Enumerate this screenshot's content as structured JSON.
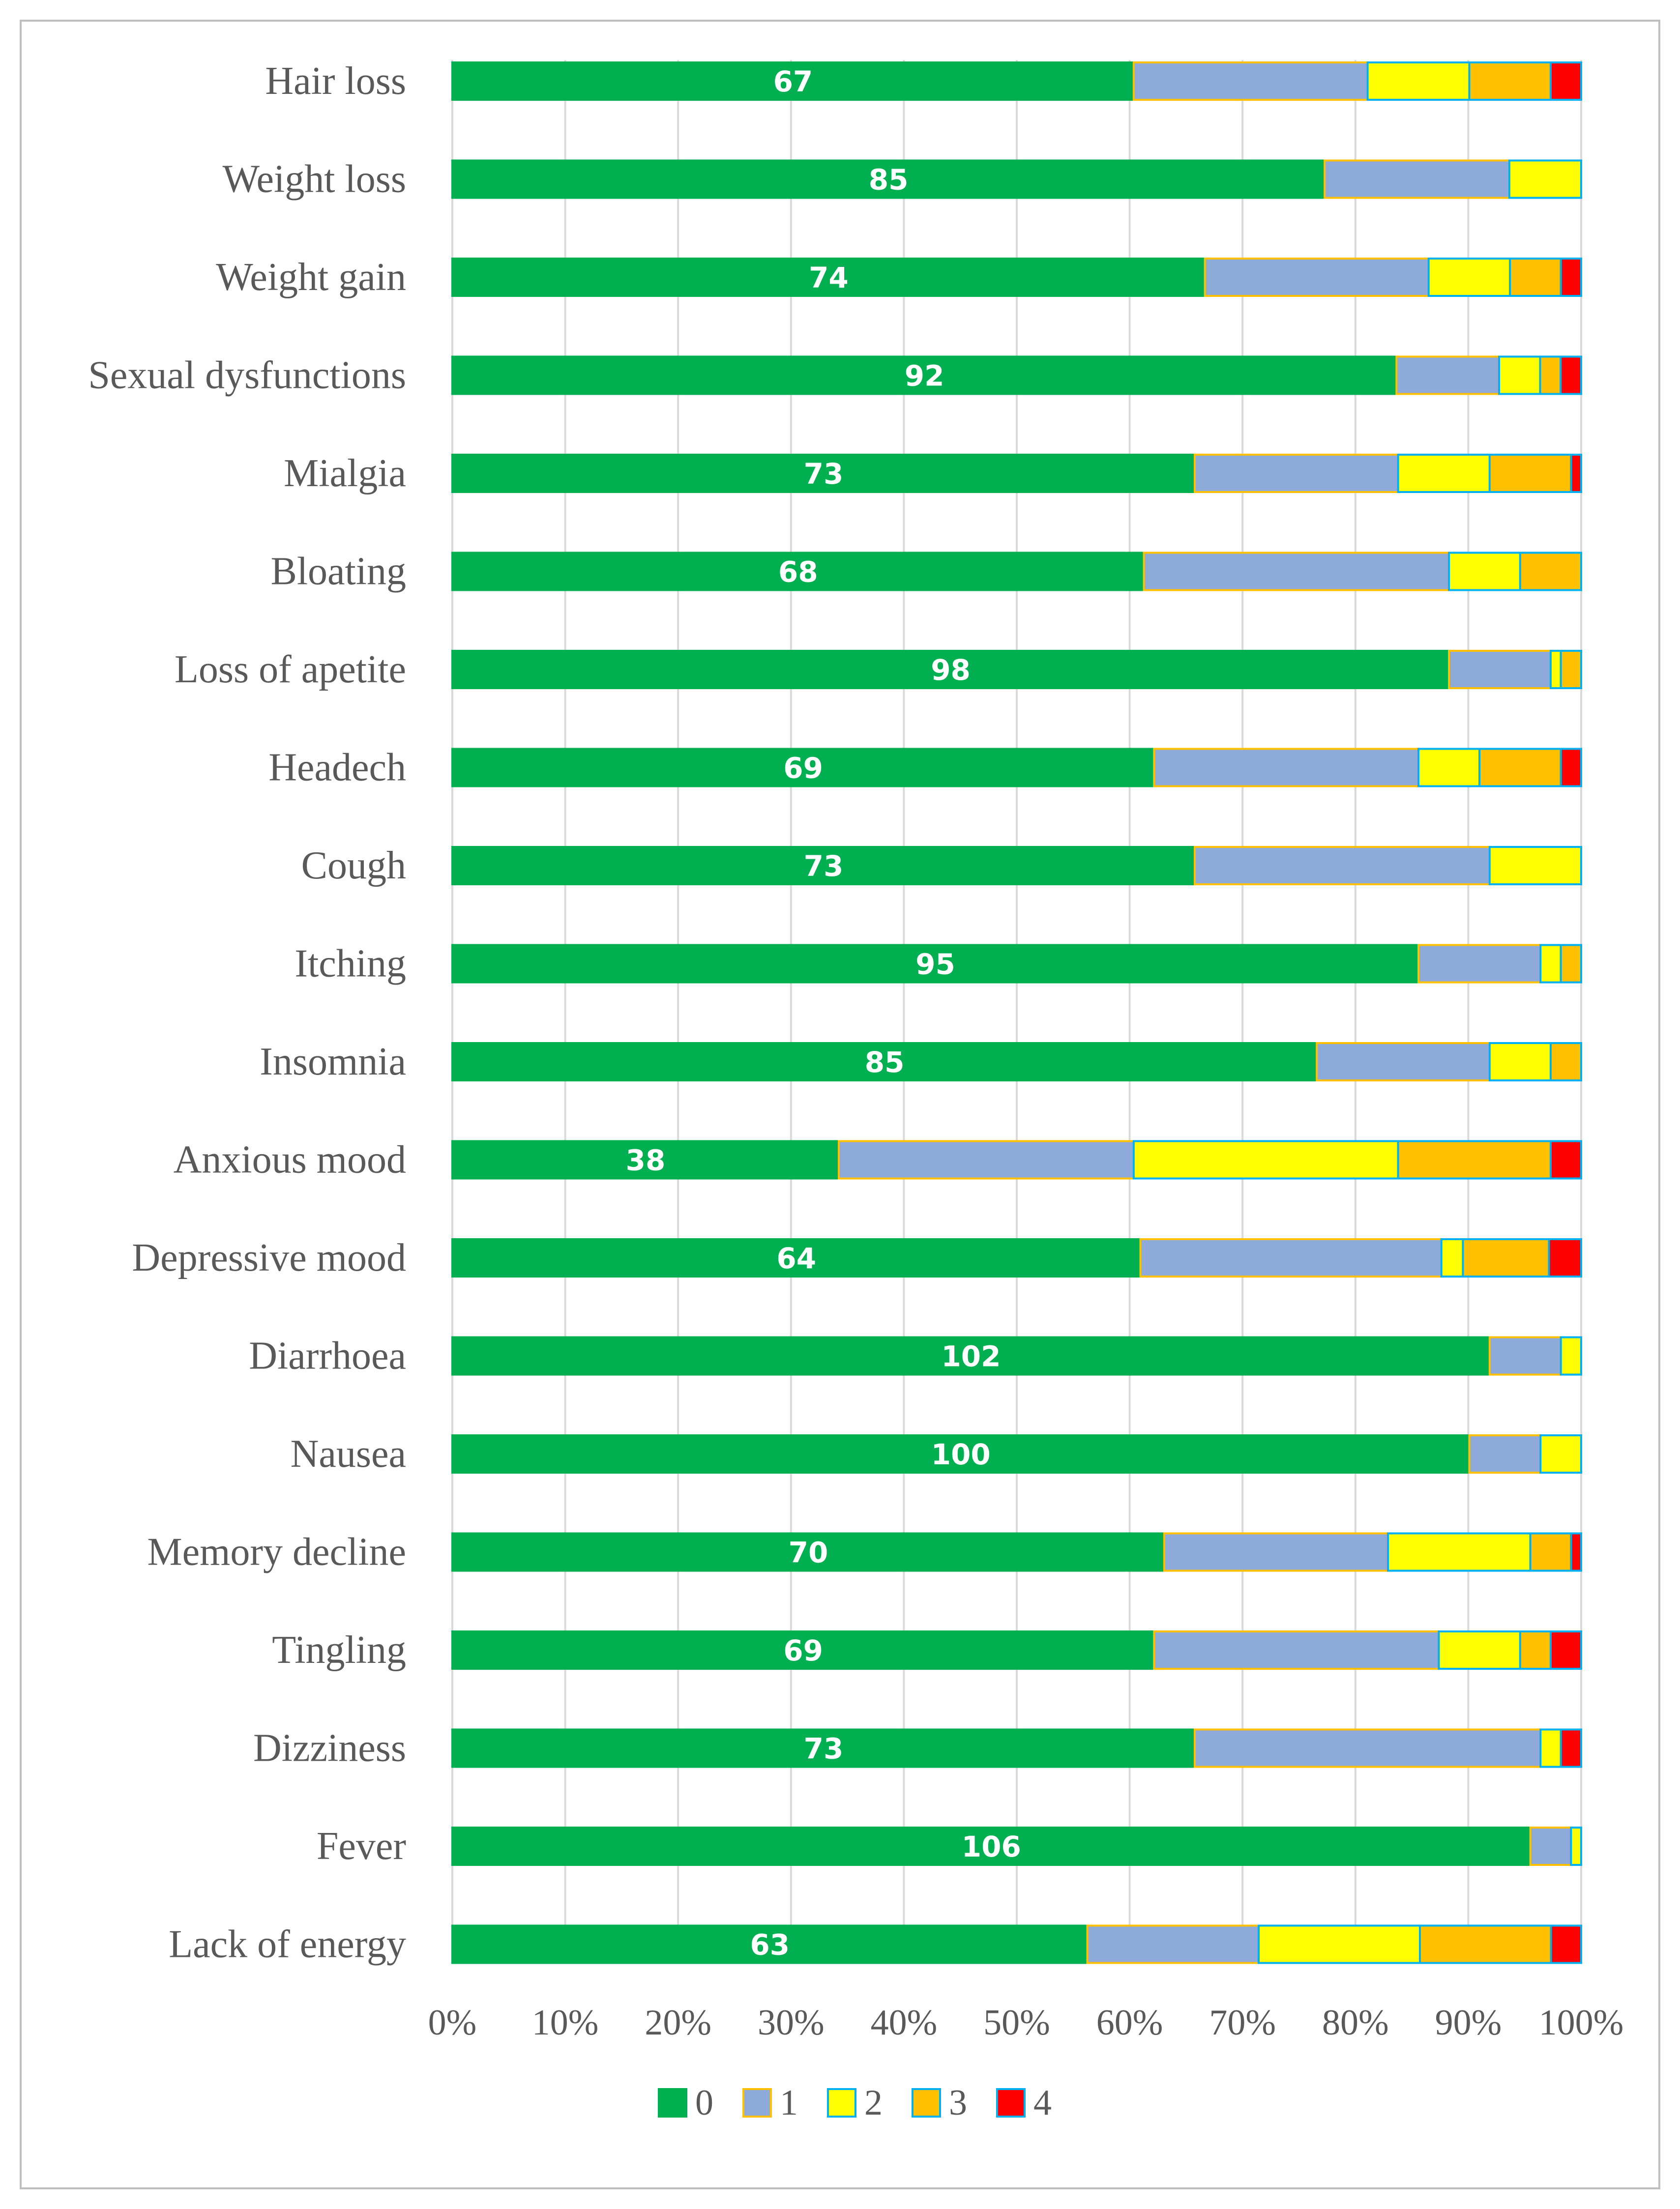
{
  "chart_data": {
    "type": "bar",
    "orientation": "horizontal",
    "stacking": "percent",
    "title": "",
    "xlabel": "",
    "ylabel": "",
    "xlim": [
      0,
      100
    ],
    "x_ticks": [
      "0%",
      "10%",
      "20%",
      "30%",
      "40%",
      "50%",
      "60%",
      "70%",
      "80%",
      "90%",
      "100%"
    ],
    "grid": "vertical",
    "legend_position": "bottom",
    "categories": [
      "Hair loss",
      "Weight loss",
      "Weight gain",
      "Sexual dysfunctions",
      "Mialgia",
      "Bloating",
      "Loss of apetite",
      "Headech",
      "Cough",
      "Itching",
      "Insomnia",
      "Anxious mood",
      "Depressive mood",
      "Diarrhoea",
      "Nausea",
      "Memory decline",
      "Tingling",
      "Dizziness",
      "Fever",
      "Lack of energy"
    ],
    "data_labels": [
      "67",
      "85",
      "74",
      "92",
      "73",
      "68",
      "98",
      "69",
      "73",
      "95",
      "85",
      "38",
      "64",
      "102",
      "100",
      "70",
      "69",
      "73",
      "106",
      "63"
    ],
    "series": [
      {
        "name": "0",
        "color": "#00b050",
        "border": "#00b050",
        "values": [
          67,
          85,
          74,
          92,
          73,
          68,
          98,
          69,
          73,
          95,
          85,
          38,
          64,
          102,
          100,
          70,
          69,
          73,
          106,
          63
        ]
      },
      {
        "name": "1",
        "color": "#8eaadb",
        "border": "#ffc000",
        "values": [
          23,
          18,
          22,
          10,
          20,
          30,
          10,
          26,
          29,
          12,
          17,
          29,
          28,
          7,
          7,
          22,
          28,
          34,
          4,
          17
        ]
      },
      {
        "name": "2",
        "color": "#ffff00",
        "border": "#00b0f0",
        "values": [
          10,
          7,
          8,
          4,
          9,
          7,
          1,
          6,
          9,
          2,
          6,
          26,
          2,
          2,
          4,
          14,
          8,
          2,
          1,
          16
        ]
      },
      {
        "name": "3",
        "color": "#ffc000",
        "border": "#00b0f0",
        "values": [
          8,
          0,
          5,
          2,
          8,
          6,
          2,
          8,
          0,
          2,
          3,
          15,
          8,
          0,
          0,
          4,
          3,
          0,
          0,
          13
        ]
      },
      {
        "name": "4",
        "color": "#ff0000",
        "border": "#00b0f0",
        "values": [
          3,
          0,
          2,
          2,
          1,
          0,
          0,
          2,
          0,
          0,
          0,
          3,
          3,
          0,
          0,
          1,
          3,
          2,
          0,
          3
        ]
      }
    ]
  }
}
